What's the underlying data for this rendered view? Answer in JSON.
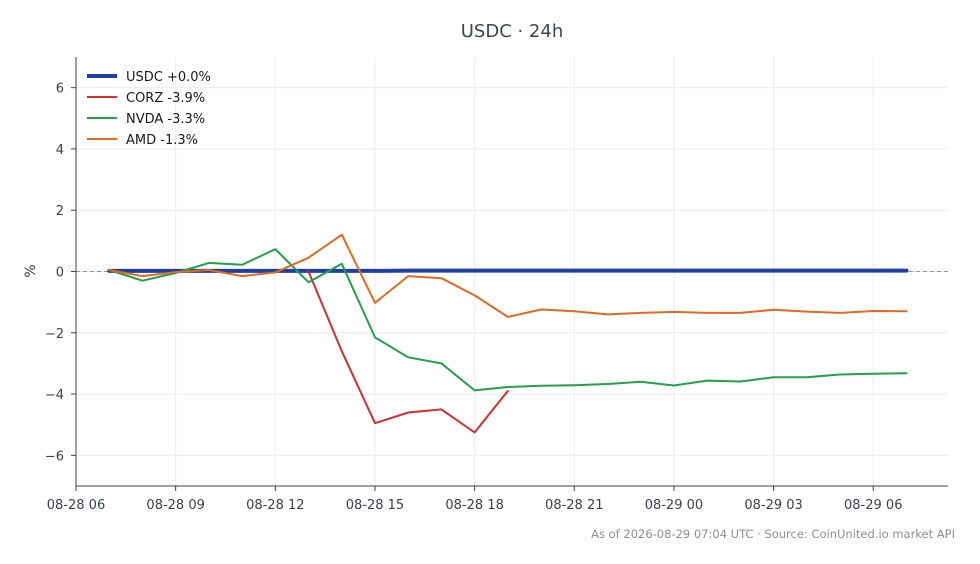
{
  "chart_data": {
    "type": "line",
    "title": "USDC · 24h",
    "xlabel": "",
    "ylabel": "%",
    "ylim": [
      -7,
      7
    ],
    "xlim": [
      "2026-08-28 06:00",
      "2026-08-29 08:15"
    ],
    "yticks": [
      6,
      4,
      2,
      0,
      -2,
      -4,
      -6
    ],
    "ytick_labels": [
      "6",
      "4",
      "2",
      "0",
      "−2",
      "−4",
      "−6"
    ],
    "xticks": [
      "2026-08-28 06:00",
      "2026-08-28 09:00",
      "2026-08-28 12:00",
      "2026-08-28 15:00",
      "2026-08-28 18:00",
      "2026-08-28 21:00",
      "2026-08-29 00:00",
      "2026-08-29 03:00",
      "2026-08-29 06:00"
    ],
    "xtick_labels": [
      "08-28 06",
      "08-28 09",
      "08-28 12",
      "08-28 15",
      "08-28 18",
      "08-28 21",
      "08-29 00",
      "08-29 03",
      "08-29 06"
    ],
    "grid": true,
    "zero_line": true,
    "legend_position": "top-left",
    "x": [
      "2026-08-28 07:00",
      "2026-08-28 08:00",
      "2026-08-28 09:00",
      "2026-08-28 10:00",
      "2026-08-28 11:00",
      "2026-08-28 12:00",
      "2026-08-28 13:00",
      "2026-08-28 14:00",
      "2026-08-28 15:00",
      "2026-08-28 16:00",
      "2026-08-28 17:00",
      "2026-08-28 18:00",
      "2026-08-28 19:00",
      "2026-08-28 20:00",
      "2026-08-28 21:00",
      "2026-08-28 22:00",
      "2026-08-28 23:00",
      "2026-08-29 00:00",
      "2026-08-29 01:00",
      "2026-08-29 02:00",
      "2026-08-29 03:00",
      "2026-08-29 04:00",
      "2026-08-29 05:00",
      "2026-08-29 06:00",
      "2026-08-29 07:00"
    ],
    "series": [
      {
        "name": "USDC +0.0%",
        "color": "#1f3fa6",
        "width": 4,
        "values": [
          0.02,
          0.02,
          0.02,
          0.02,
          0.02,
          0.02,
          0.02,
          0.02,
          0.02,
          0.03,
          0.03,
          0.03,
          0.03,
          0.03,
          0.03,
          0.03,
          0.03,
          0.03,
          0.03,
          0.03,
          0.03,
          0.03,
          0.03,
          0.03,
          0.03
        ]
      },
      {
        "name": "CORZ -3.9%",
        "color": "#d03030",
        "width": 2,
        "values": [
          null,
          null,
          null,
          null,
          null,
          null,
          0.0,
          -2.6,
          -4.95,
          -4.6,
          -4.5,
          -5.25,
          -3.9,
          null,
          null,
          null,
          null,
          null,
          null,
          null,
          null,
          null,
          null,
          null,
          null
        ]
      },
      {
        "name": "NVDA -3.3%",
        "color": "#23a04a",
        "width": 2,
        "values": [
          0.05,
          -0.3,
          -0.05,
          0.28,
          0.22,
          0.73,
          -0.35,
          0.25,
          -2.15,
          -2.8,
          -3.0,
          -3.88,
          -3.77,
          -3.73,
          -3.71,
          -3.67,
          -3.6,
          -3.72,
          -3.56,
          -3.59,
          -3.45,
          -3.45,
          -3.36,
          -3.34,
          -3.32
        ]
      },
      {
        "name": "AMD -1.3%",
        "color": "#e06a1e",
        "width": 2,
        "values": [
          0.05,
          -0.15,
          -0.02,
          0.05,
          -0.15,
          -0.03,
          0.45,
          1.2,
          -1.02,
          -0.15,
          -0.22,
          -0.78,
          -1.48,
          -1.24,
          -1.3,
          -1.4,
          -1.35,
          -1.32,
          -1.35,
          -1.35,
          -1.25,
          -1.31,
          -1.35,
          -1.29,
          -1.3
        ]
      }
    ]
  },
  "footer": "As of 2026-08-29 07:04 UTC · Source: CoinUnited.io market API"
}
